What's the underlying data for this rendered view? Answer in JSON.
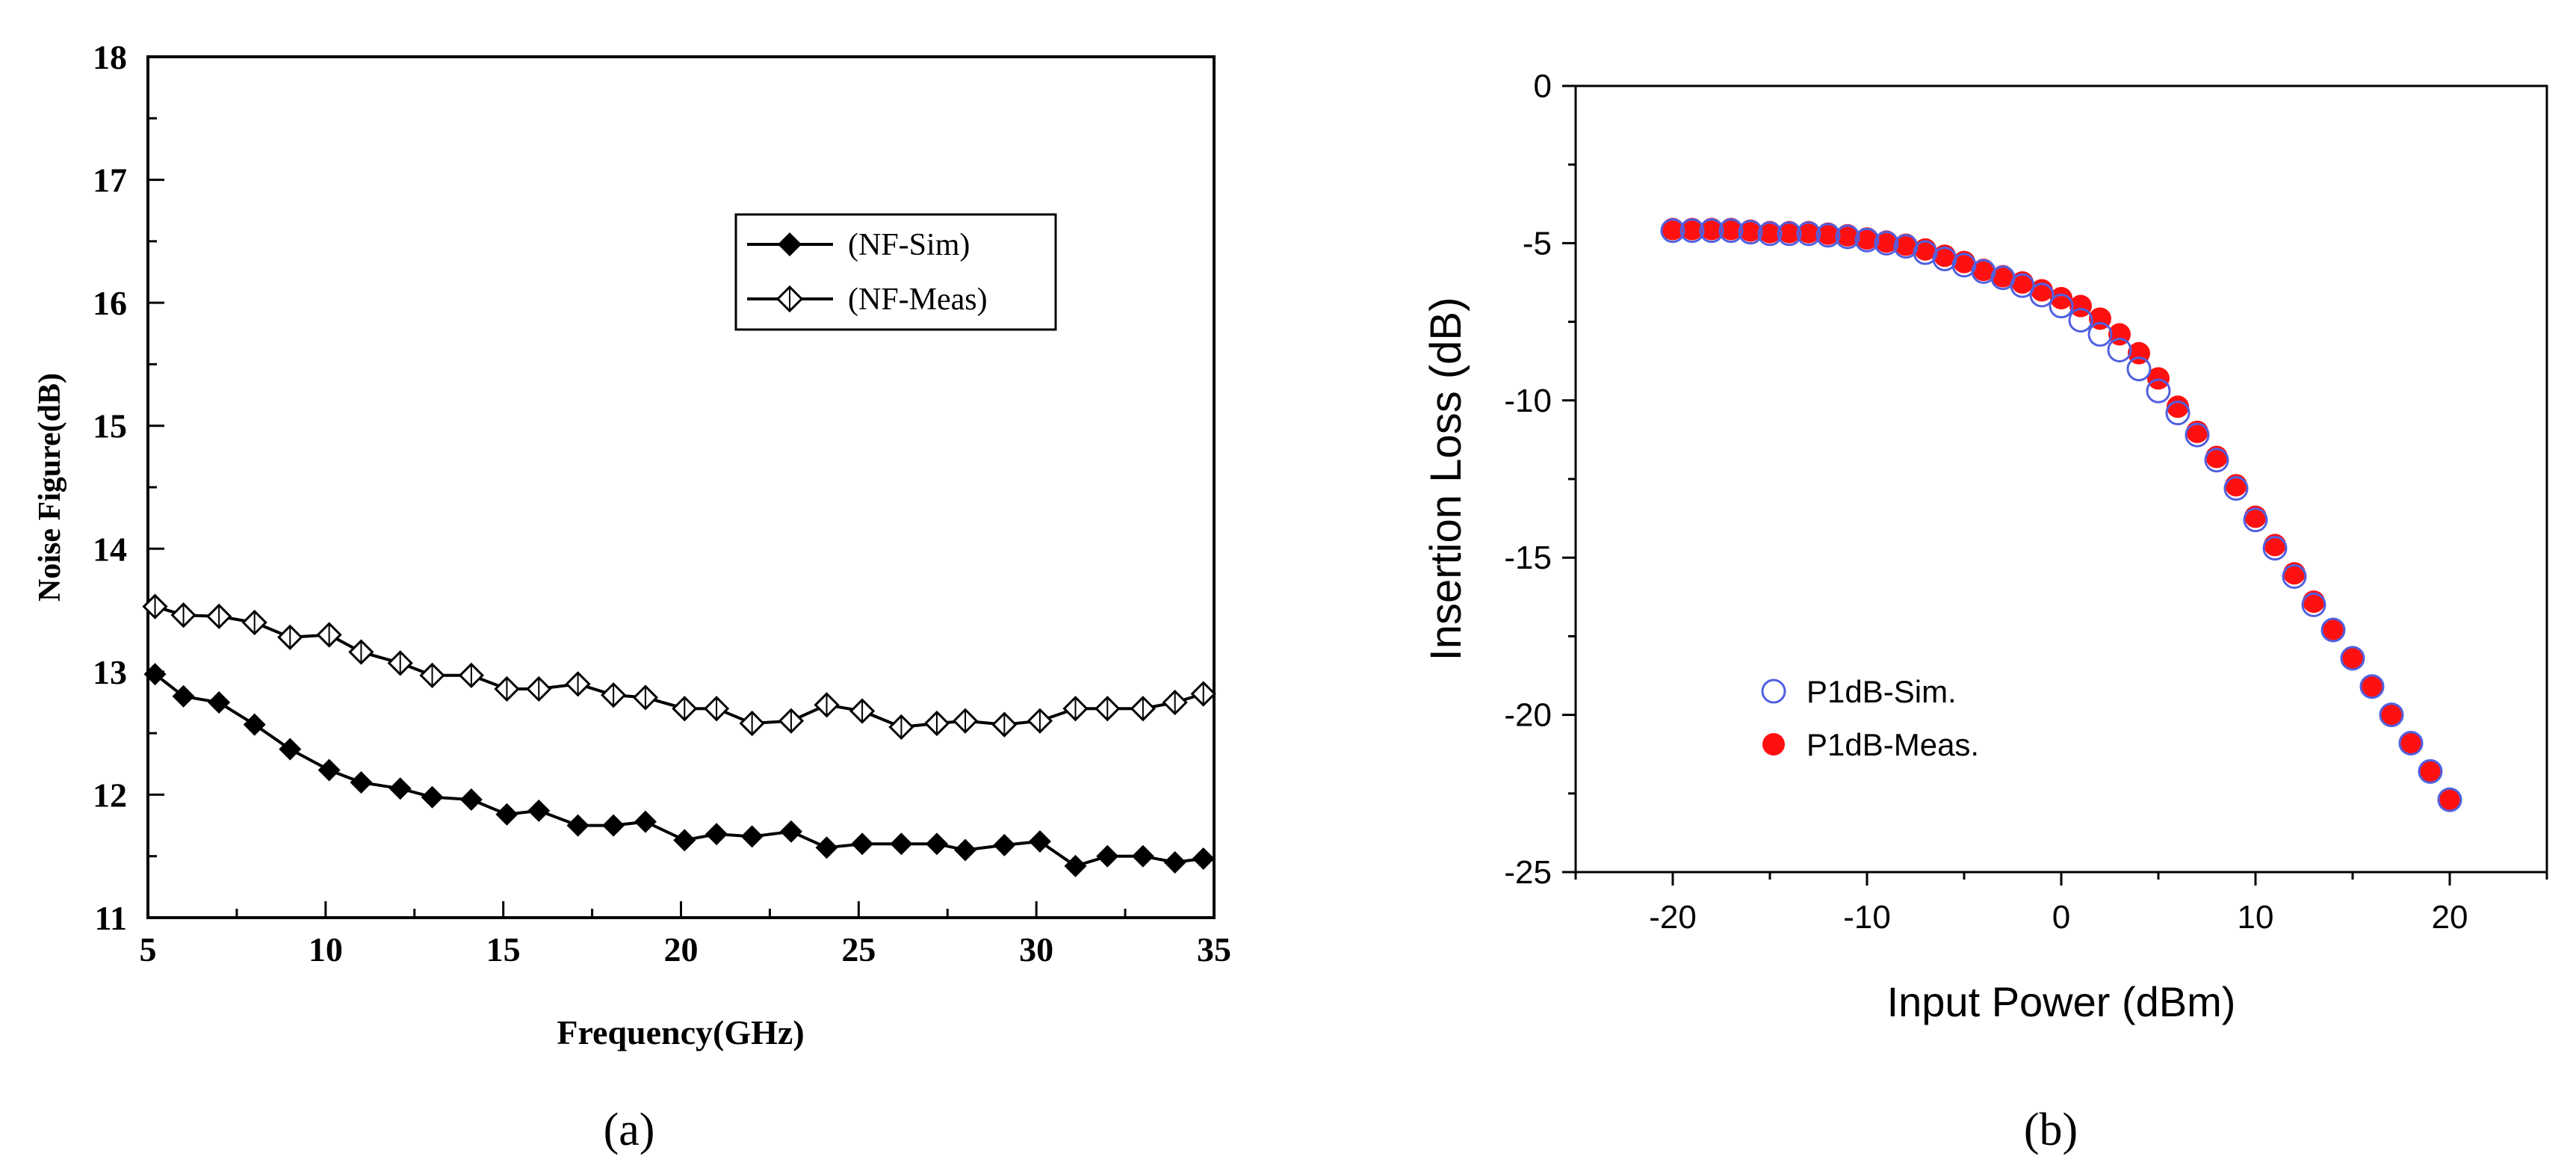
{
  "chart_data": [
    {
      "type": "line",
      "panel_label": "(a)",
      "xlabel": "Frequency(GHz)",
      "ylabel": "Noise Figure(dB)",
      "xlim": [
        5,
        35
      ],
      "ylim": [
        11,
        18
      ],
      "xticks": [
        "5",
        "10",
        "15",
        "20",
        "25",
        "30",
        "35"
      ],
      "yticks": [
        "11",
        "12",
        "13",
        "14",
        "15",
        "16",
        "17",
        "18"
      ],
      "legend_position": "upper-right",
      "series": [
        {
          "name": "(NF-Sim)",
          "marker": "filled-diamond",
          "color": "#000000",
          "x": [
            5.2,
            6.0,
            7.0,
            8.0,
            9.0,
            10.1,
            11.0,
            12.1,
            13.0,
            14.1,
            15.1,
            16.0,
            17.1,
            18.1,
            19.0,
            20.1,
            21.0,
            22.0,
            23.1,
            24.1,
            25.1,
            26.2,
            27.2,
            28.0,
            29.1,
            30.1,
            31.1,
            32.0,
            33.0,
            33.9,
            34.7
          ],
          "y": [
            12.98,
            12.8,
            12.75,
            12.57,
            12.37,
            12.2,
            12.1,
            12.05,
            11.98,
            11.96,
            11.84,
            11.87,
            11.75,
            11.75,
            11.78,
            11.63,
            11.68,
            11.66,
            11.7,
            11.57,
            11.6,
            11.6,
            11.6,
            11.55,
            11.59,
            11.62,
            11.42,
            11.5,
            11.5,
            11.45,
            11.48
          ]
        },
        {
          "name": "(NF-Meas)",
          "marker": "open-diamond",
          "color": "#000000",
          "x": [
            5.2,
            6.0,
            7.0,
            8.0,
            9.0,
            10.1,
            11.0,
            12.1,
            13.0,
            14.1,
            15.1,
            16.0,
            17.1,
            18.1,
            19.0,
            20.1,
            21.0,
            22.0,
            23.1,
            24.1,
            25.1,
            26.2,
            27.2,
            28.0,
            29.1,
            30.1,
            31.1,
            32.0,
            33.0,
            33.9,
            34.7
          ],
          "y": [
            13.53,
            13.46,
            13.45,
            13.4,
            13.28,
            13.3,
            13.16,
            13.07,
            12.97,
            12.97,
            12.86,
            12.86,
            12.9,
            12.81,
            12.79,
            12.7,
            12.7,
            12.58,
            12.6,
            12.73,
            12.68,
            12.55,
            12.58,
            12.6,
            12.57,
            12.6,
            12.7,
            12.7,
            12.7,
            12.75,
            12.82
          ]
        }
      ]
    },
    {
      "type": "scatter",
      "panel_label": "(b)",
      "xlabel": "Input Power (dBm)",
      "ylabel": "Insertion Loss (dB)",
      "xlim": [
        -25,
        25
      ],
      "ylim": [
        -25,
        0
      ],
      "xticks": [
        "-20",
        "-10",
        "0",
        "10",
        "20"
      ],
      "yticks": [
        "0",
        "-5",
        "-10",
        "-15",
        "-20",
        "-25"
      ],
      "legend_position": "lower-left",
      "series": [
        {
          "name": "P1dB-Sim.",
          "marker": "open-circle",
          "color": "#5060e0",
          "x": [
            -20,
            -19,
            -18,
            -17,
            -16,
            -15,
            -14,
            -13,
            -12,
            -11,
            -10,
            -9,
            -8,
            -7,
            -6,
            -5,
            -4,
            -3,
            -2,
            -1,
            0,
            1,
            2,
            3,
            4,
            5,
            6,
            7,
            8,
            9,
            10,
            11,
            12,
            13,
            14,
            15,
            16,
            17,
            18,
            19,
            20
          ],
          "y": [
            -4.6,
            -4.6,
            -4.6,
            -4.6,
            -4.65,
            -4.7,
            -4.7,
            -4.7,
            -4.75,
            -4.8,
            -4.9,
            -5.0,
            -5.1,
            -5.3,
            -5.5,
            -5.7,
            -5.9,
            -6.1,
            -6.35,
            -6.65,
            -7.0,
            -7.45,
            -7.9,
            -8.4,
            -9.0,
            -9.7,
            -10.4,
            -11.1,
            -11.9,
            -12.8,
            -13.8,
            -14.7,
            -15.6,
            -16.5,
            -17.3,
            -18.2,
            -19.1,
            -20.0,
            -20.9,
            -21.8,
            -22.7
          ]
        },
        {
          "name": "P1dB-Meas.",
          "marker": "filled-circle",
          "color": "#ff1010",
          "x": [
            -20,
            -19,
            -18,
            -17,
            -16,
            -15,
            -14,
            -13,
            -12,
            -11,
            -10,
            -9,
            -8,
            -7,
            -6,
            -5,
            -4,
            -3,
            -2,
            -1,
            0,
            1,
            2,
            3,
            4,
            5,
            6,
            7,
            8,
            9,
            10,
            11,
            12,
            13,
            14,
            15,
            16,
            17,
            18,
            19,
            20
          ],
          "y": [
            -4.55,
            -4.55,
            -4.55,
            -4.55,
            -4.6,
            -4.65,
            -4.65,
            -4.65,
            -4.7,
            -4.75,
            -4.85,
            -4.95,
            -5.05,
            -5.2,
            -5.4,
            -5.6,
            -5.85,
            -6.05,
            -6.25,
            -6.5,
            -6.75,
            -7.0,
            -7.4,
            -7.9,
            -8.5,
            -9.3,
            -10.2,
            -11.0,
            -11.8,
            -12.7,
            -13.7,
            -14.6,
            -15.5,
            -16.4,
            -17.3,
            -18.2,
            -19.1,
            -20.0,
            -20.9,
            -21.8,
            -22.7
          ]
        }
      ]
    }
  ]
}
